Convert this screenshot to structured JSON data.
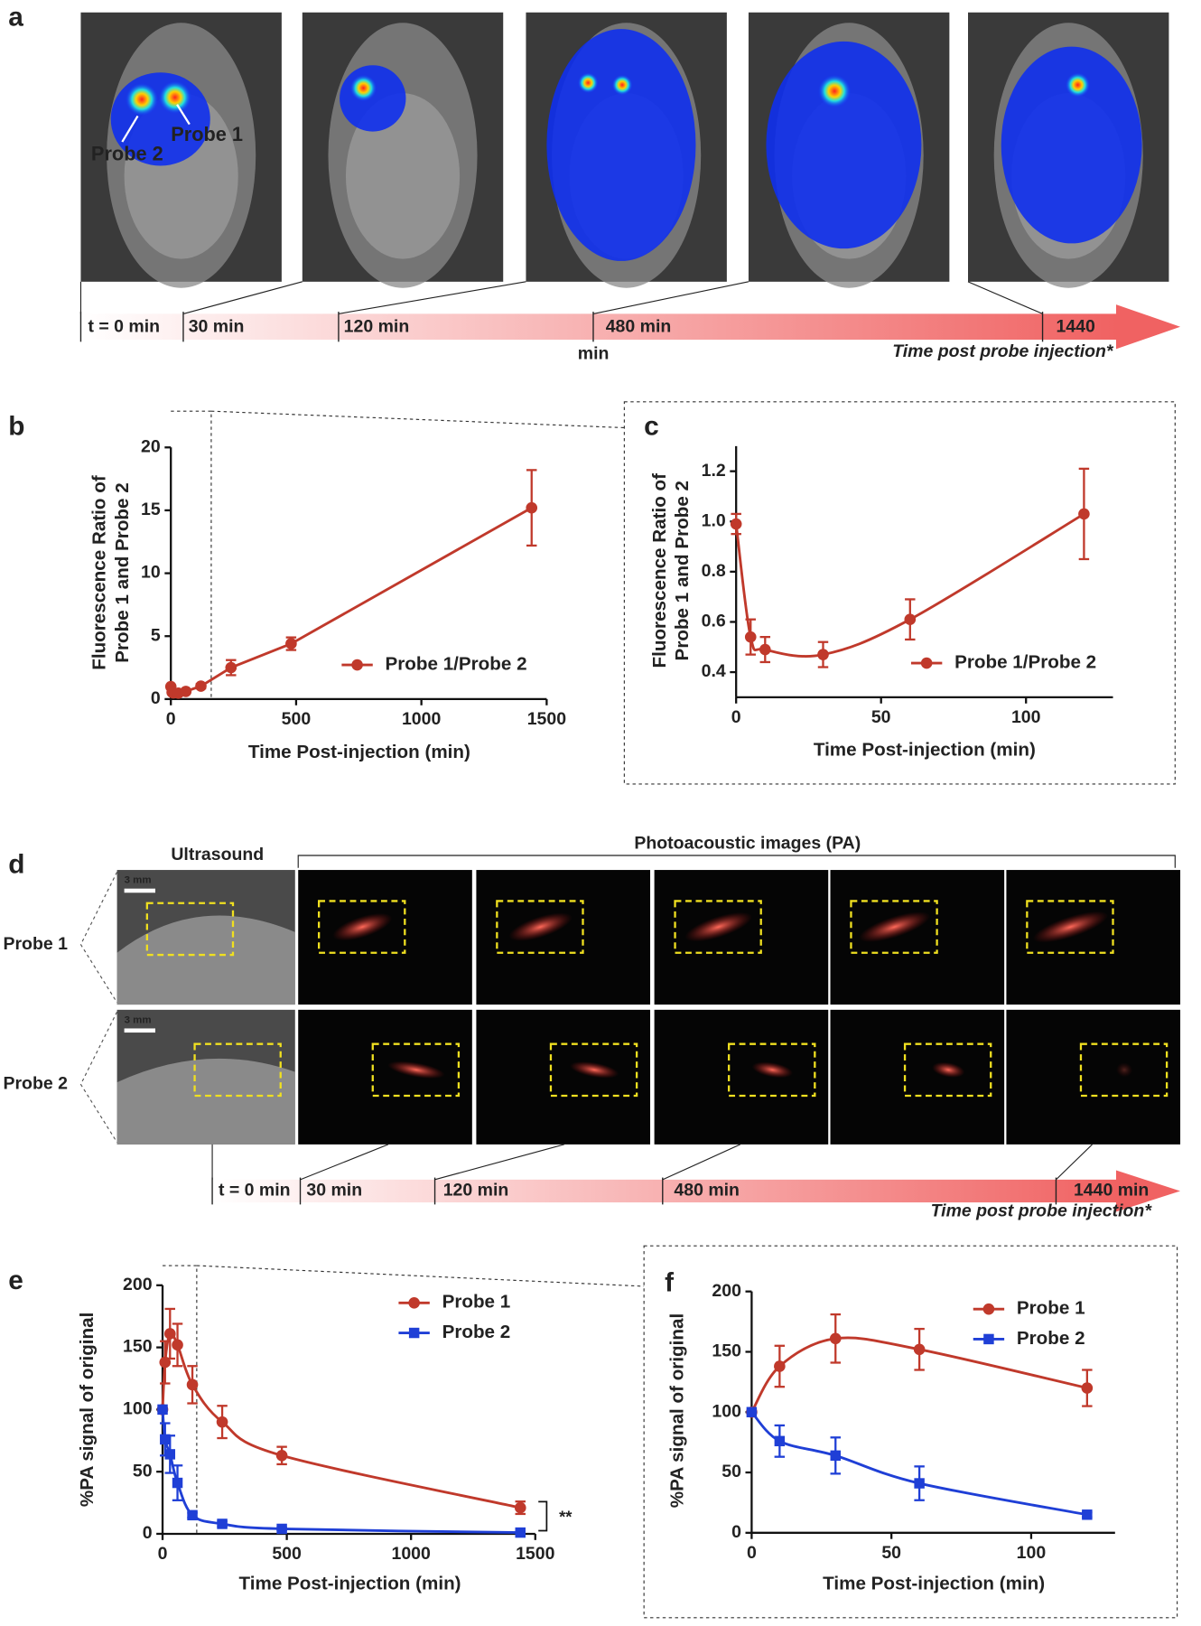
{
  "panel_labels": [
    "a",
    "b",
    "c",
    "d",
    "e",
    "f"
  ],
  "fluorescence_images": {
    "labels": [
      "Probe 2",
      "Probe 1"
    ],
    "timeline": [
      "t = 0 min",
      "30 min",
      "120 min",
      "480 min",
      "min",
      "1440"
    ],
    "caption": "Time post probe injection*"
  },
  "photoacoustic_images": {
    "ultrasound_title": "Ultrasound",
    "pa_title": "Photoacoustic images (PA)",
    "rows": [
      "Probe 1",
      "Probe 2"
    ],
    "scale_bars": [
      "3 mm",
      "3 mm"
    ],
    "timeline": [
      "t = 0 min",
      "30 min",
      "120 min",
      "480 min",
      "1440 min"
    ],
    "caption": "Time post probe injection*"
  },
  "chart_data": [
    {
      "type": "line",
      "xlabel": "Time Post-injection (min)",
      "ylabel": [
        "Fluorescence Ratio of",
        "Probe 1 and Probe 2"
      ],
      "x": [
        0,
        5,
        10,
        30,
        60,
        120,
        240,
        480,
        1440
      ],
      "series": [
        {
          "name": "Probe 1/Probe 2",
          "color": "#c0392b",
          "marker": "circle",
          "values": [
            0.99,
            0.54,
            0.49,
            0.47,
            0.61,
            1.03,
            2.5,
            4.4,
            15.2
          ],
          "errors": [
            0.04,
            0.07,
            0.05,
            0.05,
            0.08,
            0.18,
            0.6,
            0.5,
            3.0
          ]
        }
      ],
      "xlim": [
        0,
        1500
      ],
      "xticks": [
        0,
        500,
        1000,
        1500
      ],
      "ylim": [
        0,
        20
      ],
      "yticks": [
        0,
        5,
        10,
        15,
        20
      ],
      "smooth": false,
      "legend": "lower right"
    },
    {
      "type": "line",
      "xlabel": "Time Post-injection (min)",
      "ylabel": [
        "Fluorescence Ratio of",
        "Probe 1 and Probe 2"
      ],
      "x": [
        0,
        5,
        10,
        30,
        60,
        120
      ],
      "series": [
        {
          "name": "Probe 1/Probe 2",
          "color": "#c0392b",
          "marker": "circle",
          "values": [
            0.99,
            0.54,
            0.49,
            0.47,
            0.61,
            1.03
          ],
          "errors": [
            0.04,
            0.07,
            0.05,
            0.05,
            0.08,
            0.18
          ]
        }
      ],
      "xlim": [
        0,
        130
      ],
      "xticks": [
        0,
        50,
        100
      ],
      "ylim": [
        0.3,
        1.3
      ],
      "yticks": [
        0.4,
        0.6,
        0.8,
        {
          "value": 1,
          "label": "1.0"
        },
        1.2
      ],
      "smooth": true,
      "legend": "lower right"
    },
    {
      "type": "line",
      "xlabel": "Time Post-injection (min)",
      "ylabel": "%PA signal of original",
      "x": [
        0,
        10,
        30,
        60,
        120,
        240,
        480,
        1440
      ],
      "series": [
        {
          "name": "Probe 1",
          "color": "#c0392b",
          "marker": "circle",
          "values": [
            100,
            138,
            161,
            152,
            120,
            90,
            63,
            21
          ],
          "errors": [
            0,
            17,
            20,
            17,
            15,
            13,
            7,
            5
          ]
        },
        {
          "name": "Probe 2",
          "color": "#1f3fd6",
          "marker": "square",
          "values": [
            100,
            76,
            64,
            41,
            15,
            8,
            4,
            1
          ],
          "errors": [
            0,
            13,
            15,
            14,
            2,
            2,
            1,
            1
          ]
        }
      ],
      "xlim": [
        0,
        1500
      ],
      "xticks": [
        0,
        500,
        1000,
        1500
      ],
      "ylim": [
        0,
        200
      ],
      "yticks": [
        0,
        50,
        100,
        150,
        200
      ],
      "smooth": true,
      "legend": "upper right",
      "annotation": "**"
    },
    {
      "type": "line",
      "xlabel": "Time Post-injection (min)",
      "ylabel": "%PA signal of original",
      "x": [
        0,
        10,
        30,
        60,
        120
      ],
      "series": [
        {
          "name": "Probe 1",
          "color": "#c0392b",
          "marker": "circle",
          "values": [
            100,
            138,
            161,
            152,
            120
          ],
          "errors": [
            0,
            17,
            20,
            17,
            15
          ]
        },
        {
          "name": "Probe 2",
          "color": "#1f3fd6",
          "marker": "square",
          "values": [
            100,
            76,
            64,
            41,
            15
          ],
          "errors": [
            0,
            13,
            15,
            14,
            2
          ]
        }
      ],
      "xlim": [
        0,
        130
      ],
      "xticks": [
        0,
        50,
        100
      ],
      "ylim": [
        0,
        200
      ],
      "yticks": [
        0,
        50,
        100,
        150,
        200
      ],
      "smooth": true,
      "legend": "upper right"
    }
  ]
}
